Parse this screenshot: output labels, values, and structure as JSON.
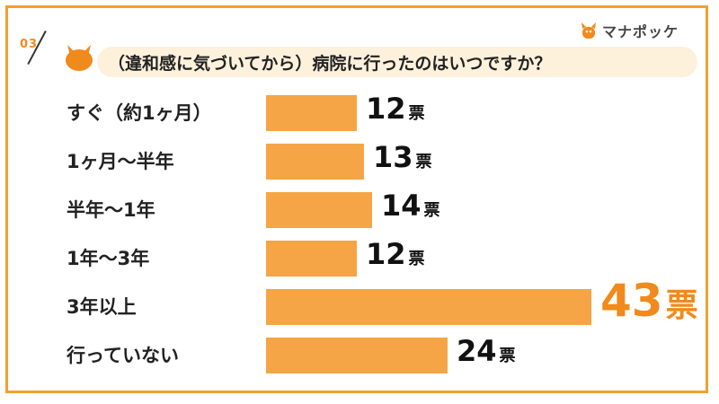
{
  "header": {
    "question_number": "03",
    "question": "（違和感に気づいてから）病院に行ったのはいつですか？",
    "logo_text": "マナポッケ"
  },
  "colors": {
    "accent": "#f08a1c",
    "bar": "#f5a545",
    "border": "#f0a030",
    "pill": "#fdf1dc"
  },
  "chart_data": {
    "type": "bar",
    "orientation": "horizontal",
    "title": "（違和感に気づいてから）病院に行ったのはいつですか？",
    "categories": [
      "すぐ（約1ヶ月）",
      "1ヶ月〜半年",
      "半年〜1年",
      "1年〜3年",
      "3年以上",
      "行っていない"
    ],
    "values": [
      12,
      13,
      14,
      12,
      43,
      24
    ],
    "value_labels": [
      "12",
      "13",
      "14",
      "12",
      "43",
      "24"
    ],
    "unit": "票",
    "highlight_index": 4
  }
}
